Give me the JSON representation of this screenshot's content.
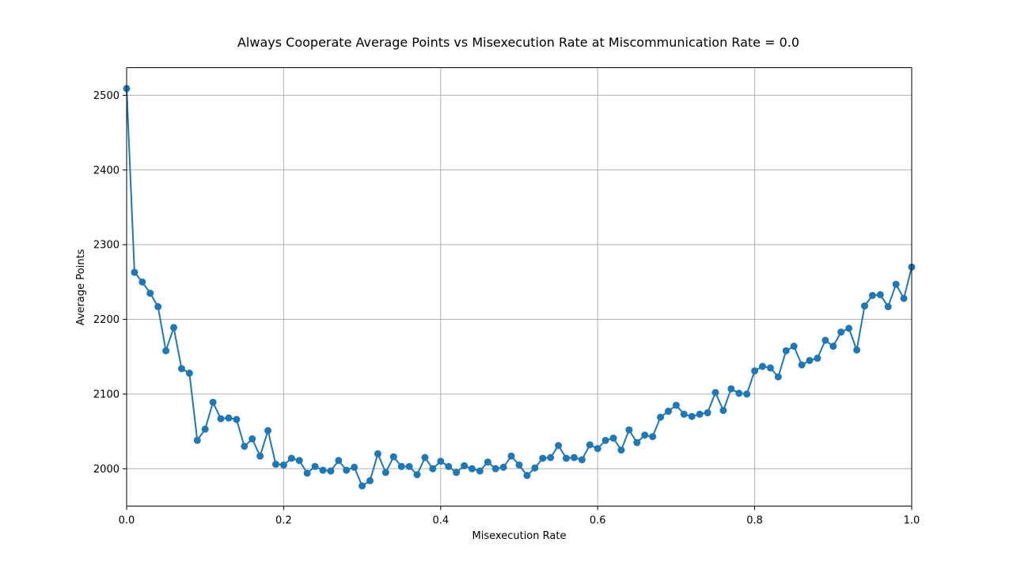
{
  "chart_data": {
    "type": "line",
    "title": "Always Cooperate Average Points vs Misexecution Rate at Miscommunication Rate = 0.0",
    "xlabel": "Misexecution Rate",
    "ylabel": "Average Points",
    "xlim": [
      0.0,
      1.0
    ],
    "ylim": [
      1950,
      2537
    ],
    "xticks": [
      "0.0",
      "0.2",
      "0.4",
      "0.6",
      "0.8",
      "1.0"
    ],
    "yticks": [
      "2000",
      "2100",
      "2200",
      "2300",
      "2400",
      "2500"
    ],
    "grid": true,
    "markers": true,
    "color": "#1f77b4",
    "x": [
      0.0,
      0.01,
      0.02,
      0.03,
      0.04,
      0.05,
      0.06,
      0.07,
      0.08,
      0.09,
      0.1,
      0.11,
      0.12,
      0.13,
      0.14,
      0.15,
      0.16,
      0.17,
      0.18,
      0.19,
      0.2,
      0.21,
      0.22,
      0.23,
      0.24,
      0.25,
      0.26,
      0.27,
      0.28,
      0.29,
      0.3,
      0.31,
      0.32,
      0.33,
      0.34,
      0.35,
      0.36,
      0.37,
      0.38,
      0.39,
      0.4,
      0.41,
      0.42,
      0.43,
      0.44,
      0.45,
      0.46,
      0.47,
      0.48,
      0.49,
      0.5,
      0.51,
      0.52,
      0.53,
      0.54,
      0.55,
      0.56,
      0.57,
      0.58,
      0.59,
      0.6,
      0.61,
      0.62,
      0.63,
      0.64,
      0.65,
      0.66,
      0.67,
      0.68,
      0.69,
      0.7,
      0.71,
      0.72,
      0.73,
      0.74,
      0.75,
      0.76,
      0.77,
      0.78,
      0.79,
      0.8,
      0.81,
      0.82,
      0.83,
      0.84,
      0.85,
      0.86,
      0.87,
      0.88,
      0.89,
      0.9,
      0.91,
      0.92,
      0.93,
      0.94,
      0.95,
      0.96,
      0.97,
      0.98,
      0.99,
      1.0
    ],
    "y": [
      2509,
      2263,
      2250,
      2235,
      2217,
      2158,
      2189,
      2134,
      2128,
      2038,
      2053,
      2089,
      2067,
      2068,
      2066,
      2030,
      2040,
      2017,
      2051,
      2006,
      2005,
      2014,
      2011,
      1994,
      2003,
      1998,
      1997,
      2011,
      1998,
      2002,
      1977,
      1984,
      2020,
      1995,
      2016,
      2003,
      2003,
      1992,
      2015,
      2000,
      2010,
      2003,
      1995,
      2004,
      2000,
      1997,
      2009,
      2000,
      2002,
      2017,
      2005,
      1991,
      2001,
      2014,
      2015,
      2031,
      2014,
      2015,
      2012,
      2032,
      2027,
      2038,
      2041,
      2025,
      2052,
      2035,
      2045,
      2043,
      2069,
      2077,
      2085,
      2073,
      2070,
      2073,
      2075,
      2102,
      2078,
      2107,
      2101,
      2100,
      2131,
      2137,
      2135,
      2123,
      2158,
      2164,
      2139,
      2145,
      2148,
      2172,
      2164,
      2183,
      2188,
      2159,
      2218,
      2232,
      2233,
      2217,
      2247,
      2228,
      2270
    ]
  }
}
